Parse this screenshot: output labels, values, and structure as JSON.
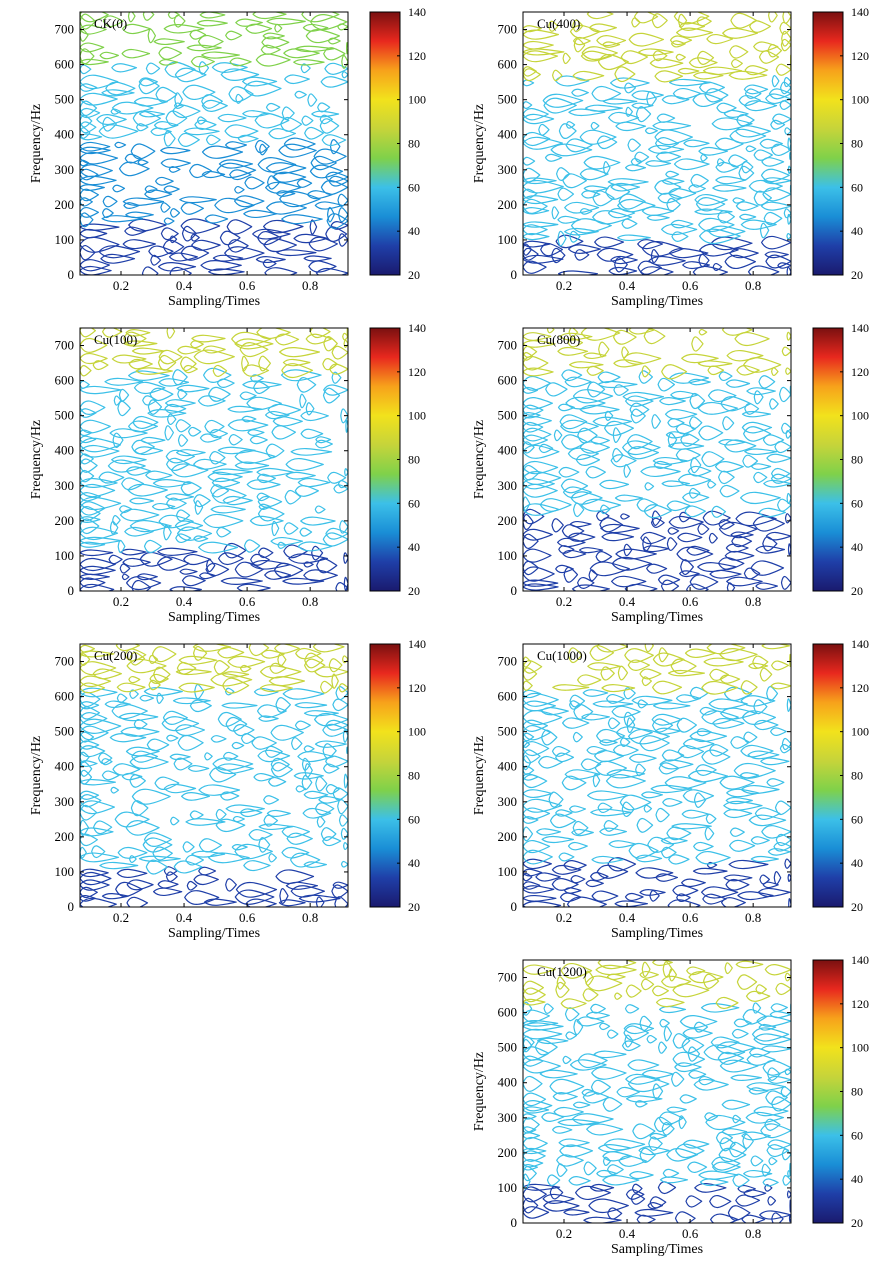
{
  "chart_data": [
    {
      "type": "contour",
      "label": "CK(0)",
      "xlabel": "Sampling/Times",
      "ylabel": "Frequency/Hz",
      "xlim": [
        0.07,
        0.92
      ],
      "ylim": [
        0,
        750
      ],
      "xticks": [
        0.2,
        0.4,
        0.6,
        0.8
      ],
      "yticks": [
        0,
        100,
        200,
        300,
        400,
        500,
        600,
        700
      ],
      "colorbar": {
        "min": 20,
        "max": 140,
        "ticks": [
          20,
          40,
          60,
          80,
          100,
          120,
          140
        ]
      },
      "bands": [
        {
          "f": [
            0,
            150
          ],
          "value": 35
        },
        {
          "f": [
            150,
            380
          ],
          "value": 50
        },
        {
          "f": [
            380,
            600
          ],
          "value": 62
        },
        {
          "f": [
            600,
            750
          ],
          "value": 75
        }
      ]
    },
    {
      "type": "contour",
      "label": "Cu(400)",
      "xlabel": "Sampling/Times",
      "ylabel": "Frequency/Hz",
      "xlim": [
        0.07,
        0.92
      ],
      "ylim": [
        0,
        750
      ],
      "xticks": [
        0.2,
        0.4,
        0.6,
        0.8
      ],
      "yticks": [
        0,
        100,
        200,
        300,
        400,
        500,
        600,
        700
      ],
      "colorbar": {
        "min": 20,
        "max": 140,
        "ticks": [
          20,
          40,
          60,
          80,
          100,
          120,
          140
        ]
      },
      "bands": [
        {
          "f": [
            0,
            100
          ],
          "value": 36
        },
        {
          "f": [
            100,
            560
          ],
          "value": 62
        },
        {
          "f": [
            560,
            750
          ],
          "value": 80
        }
      ]
    },
    {
      "type": "contour",
      "label": "Cu(100)",
      "xlabel": "Sampling/Times",
      "ylabel": "Frequency/Hz",
      "xlim": [
        0.07,
        0.92
      ],
      "ylim": [
        0,
        750
      ],
      "xticks": [
        0.2,
        0.4,
        0.6,
        0.8
      ],
      "yticks": [
        0,
        100,
        200,
        300,
        400,
        500,
        600,
        700
      ],
      "colorbar": {
        "min": 20,
        "max": 140,
        "ticks": [
          20,
          40,
          60,
          80,
          100,
          120,
          140
        ]
      },
      "bands": [
        {
          "f": [
            0,
            120
          ],
          "value": 36
        },
        {
          "f": [
            120,
            620
          ],
          "value": 62
        },
        {
          "f": [
            620,
            750
          ],
          "value": 80
        }
      ]
    },
    {
      "type": "contour",
      "label": "Cu(800)",
      "xlabel": "Sampling/Times",
      "ylabel": "Frequency/Hz",
      "xlim": [
        0.07,
        0.92
      ],
      "ylim": [
        0,
        750
      ],
      "xticks": [
        0.2,
        0.4,
        0.6,
        0.8
      ],
      "yticks": [
        0,
        100,
        200,
        300,
        400,
        500,
        600,
        700
      ],
      "colorbar": {
        "min": 20,
        "max": 140,
        "ticks": [
          20,
          40,
          60,
          80,
          100,
          120,
          140
        ]
      },
      "bands": [
        {
          "f": [
            0,
            220
          ],
          "value": 38
        },
        {
          "f": [
            220,
            620
          ],
          "value": 62
        },
        {
          "f": [
            620,
            750
          ],
          "value": 80
        }
      ]
    },
    {
      "type": "contour",
      "label": "Cu(200)",
      "xlabel": "Sampling/Times",
      "ylabel": "Frequency/Hz",
      "xlim": [
        0.07,
        0.92
      ],
      "ylim": [
        0,
        750
      ],
      "xticks": [
        0.2,
        0.4,
        0.6,
        0.8
      ],
      "yticks": [
        0,
        100,
        200,
        300,
        400,
        500,
        600,
        700
      ],
      "colorbar": {
        "min": 20,
        "max": 140,
        "ticks": [
          20,
          40,
          60,
          80,
          100,
          120,
          140
        ]
      },
      "bands": [
        {
          "f": [
            0,
            110
          ],
          "value": 36
        },
        {
          "f": [
            110,
            620
          ],
          "value": 62
        },
        {
          "f": [
            620,
            750
          ],
          "value": 80
        }
      ]
    },
    {
      "type": "contour",
      "label": "Cu(1000)",
      "xlabel": "Sampling/Times",
      "ylabel": "Frequency/Hz",
      "xlim": [
        0.07,
        0.92
      ],
      "ylim": [
        0,
        750
      ],
      "xticks": [
        0.2,
        0.4,
        0.6,
        0.8
      ],
      "yticks": [
        0,
        100,
        200,
        300,
        400,
        500,
        600,
        700
      ],
      "colorbar": {
        "min": 20,
        "max": 140,
        "ticks": [
          20,
          40,
          60,
          80,
          100,
          120,
          140
        ]
      },
      "bands": [
        {
          "f": [
            0,
            130
          ],
          "value": 36
        },
        {
          "f": [
            130,
            620
          ],
          "value": 62
        },
        {
          "f": [
            620,
            750
          ],
          "value": 80
        }
      ]
    },
    {
      "type": "contour",
      "label": "Cu(1200)",
      "xlabel": "Sampling/Times",
      "ylabel": "Frequency/Hz",
      "xlim": [
        0.07,
        0.92
      ],
      "ylim": [
        0,
        750
      ],
      "xticks": [
        0.2,
        0.4,
        0.6,
        0.8
      ],
      "yticks": [
        0,
        100,
        200,
        300,
        400,
        500,
        600,
        700
      ],
      "colorbar": {
        "min": 20,
        "max": 140,
        "ticks": [
          20,
          40,
          60,
          80,
          100,
          120,
          140
        ]
      },
      "bands": [
        {
          "f": [
            0,
            110
          ],
          "value": 36
        },
        {
          "f": [
            110,
            620
          ],
          "value": 62
        },
        {
          "f": [
            620,
            750
          ],
          "value": 80
        }
      ]
    }
  ],
  "colors": {
    "colormap": [
      "#1a1a6e",
      "#1f3fa8",
      "#1a8ed6",
      "#3cc0e8",
      "#7fd14a",
      "#c6d43a",
      "#f2e21c",
      "#f7a21b",
      "#e8281e",
      "#7a1010"
    ]
  }
}
